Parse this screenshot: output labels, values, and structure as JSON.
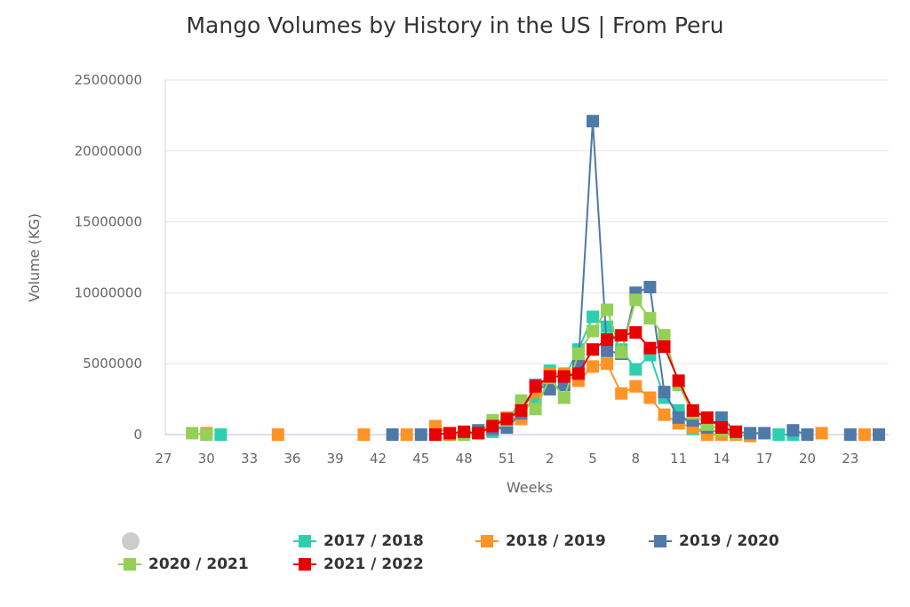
{
  "chart_data": {
    "type": "line",
    "title": "Mango Volumes by History in the US | From Peru",
    "xlabel": "Weeks",
    "ylabel": "Volume (KG)",
    "ylim": [
      0,
      25000000
    ],
    "yticks": [
      "0",
      "5000000",
      "10000000",
      "15000000",
      "20000000",
      "25000000"
    ],
    "categories": [
      "27",
      "28",
      "29",
      "30",
      "31",
      "32",
      "33",
      "34",
      "35",
      "36",
      "37",
      "38",
      "39",
      "40",
      "41",
      "42",
      "43",
      "44",
      "45",
      "46",
      "47",
      "48",
      "49",
      "50",
      "51",
      "52",
      "1",
      "2",
      "3",
      "4",
      "5",
      "6",
      "7",
      "8",
      "9",
      "10",
      "11",
      "12",
      "13",
      "14",
      "15",
      "16",
      "17",
      "18",
      "19",
      "20",
      "21",
      "22",
      "23",
      "24",
      "25"
    ],
    "xticks": [
      "27",
      "30",
      "33",
      "36",
      "39",
      "42",
      "45",
      "48",
      "51",
      "2",
      "5",
      "8",
      "11",
      "14",
      "17",
      "20",
      "23"
    ],
    "grid": "horizontal",
    "legend_placement": "bottom",
    "series": [
      {
        "name": "2017 / 2018",
        "color": "#2ecfb0",
        "points": [
          [
            "31",
            0
          ],
          [
            "50",
            200000
          ],
          [
            "51",
            800000
          ],
          [
            "52",
            2300000
          ],
          [
            "1",
            2500000
          ],
          [
            "2",
            4500000
          ],
          [
            "3",
            4000000
          ],
          [
            "4",
            6000000
          ],
          [
            "5",
            8300000
          ],
          [
            "6",
            7600000
          ],
          [
            "7",
            6000000
          ],
          [
            "8",
            4600000
          ],
          [
            "9",
            5600000
          ],
          [
            "10",
            2600000
          ],
          [
            "11",
            1700000
          ],
          [
            "12",
            400000
          ],
          [
            "13",
            300000
          ],
          [
            "14",
            200000
          ],
          [
            "15",
            0
          ],
          [
            "18",
            0
          ],
          [
            "19",
            0
          ]
        ]
      },
      {
        "name": "2018 / 2019",
        "color": "#ff9326",
        "points": [
          [
            "30",
            100000
          ],
          [
            "35",
            0
          ],
          [
            "41",
            0
          ],
          [
            "44",
            0
          ],
          [
            "46",
            600000
          ],
          [
            "47",
            0
          ],
          [
            "48",
            0
          ],
          [
            "49",
            100000
          ],
          [
            "50",
            500000
          ],
          [
            "51",
            1200000
          ],
          [
            "52",
            1100000
          ],
          [
            "1",
            3000000
          ],
          [
            "2",
            4300000
          ],
          [
            "3",
            4300000
          ],
          [
            "4",
            3800000
          ],
          [
            "5",
            4800000
          ],
          [
            "6",
            5000000
          ],
          [
            "7",
            2900000
          ],
          [
            "8",
            3400000
          ],
          [
            "9",
            2600000
          ],
          [
            "10",
            1400000
          ],
          [
            "11",
            800000
          ],
          [
            "12",
            500000
          ],
          [
            "13",
            0
          ],
          [
            "14",
            0
          ],
          [
            "15",
            0
          ],
          [
            "16",
            -100000
          ],
          [
            "21",
            100000
          ],
          [
            "24",
            0
          ]
        ]
      },
      {
        "name": "2019 / 2020",
        "color": "#4f79a8",
        "points": [
          [
            "43",
            0
          ],
          [
            "45",
            0
          ],
          [
            "49",
            300000
          ],
          [
            "50",
            400000
          ],
          [
            "51",
            500000
          ],
          [
            "52",
            1500000
          ],
          [
            "1",
            3500000
          ],
          [
            "2",
            3200000
          ],
          [
            "3",
            3500000
          ],
          [
            "4",
            5000000
          ],
          [
            "5",
            22100000
          ],
          [
            "6",
            5900000
          ],
          [
            "7",
            5700000
          ],
          [
            "8",
            10000000
          ],
          [
            "9",
            10400000
          ],
          [
            "10",
            3000000
          ],
          [
            "11",
            1200000
          ],
          [
            "12",
            1000000
          ],
          [
            "13",
            500000
          ],
          [
            "14",
            1200000
          ],
          [
            "15",
            200000
          ],
          [
            "16",
            100000
          ],
          [
            "17",
            100000
          ],
          [
            "19",
            300000
          ],
          [
            "20",
            0
          ],
          [
            "23",
            0
          ],
          [
            "25",
            0
          ]
        ]
      },
      {
        "name": "2020 / 2021",
        "color": "#94cf56",
        "points": [
          [
            "29",
            100000
          ],
          [
            "30",
            0
          ],
          [
            "48",
            0
          ],
          [
            "49",
            100000
          ],
          [
            "50",
            1000000
          ],
          [
            "51",
            1000000
          ],
          [
            "52",
            2400000
          ],
          [
            "1",
            1800000
          ],
          [
            "2",
            4000000
          ],
          [
            "3",
            2600000
          ],
          [
            "4",
            5700000
          ],
          [
            "5",
            7300000
          ],
          [
            "6",
            8800000
          ],
          [
            "7",
            5800000
          ],
          [
            "8",
            9500000
          ],
          [
            "9",
            8200000
          ],
          [
            "10",
            7000000
          ],
          [
            "11",
            3500000
          ],
          [
            "12",
            1500000
          ],
          [
            "13",
            700000
          ],
          [
            "14",
            300000
          ],
          [
            "15",
            100000
          ]
        ]
      },
      {
        "name": "2021 / 2022",
        "color": "#e80000",
        "points": [
          [
            "46",
            0
          ],
          [
            "47",
            100000
          ],
          [
            "48",
            200000
          ],
          [
            "49",
            100000
          ],
          [
            "50",
            600000
          ],
          [
            "51",
            1100000
          ],
          [
            "52",
            1700000
          ],
          [
            "1",
            3400000
          ],
          [
            "2",
            4100000
          ],
          [
            "3",
            4100000
          ],
          [
            "4",
            4300000
          ],
          [
            "5",
            6000000
          ],
          [
            "6",
            6700000
          ],
          [
            "7",
            7000000
          ],
          [
            "8",
            7200000
          ],
          [
            "9",
            6100000
          ],
          [
            "10",
            6200000
          ],
          [
            "11",
            3800000
          ],
          [
            "12",
            1700000
          ],
          [
            "13",
            1200000
          ],
          [
            "14",
            500000
          ],
          [
            "15",
            200000
          ]
        ]
      }
    ]
  },
  "legend": {
    "hidden_series_color": "#cccccc"
  }
}
